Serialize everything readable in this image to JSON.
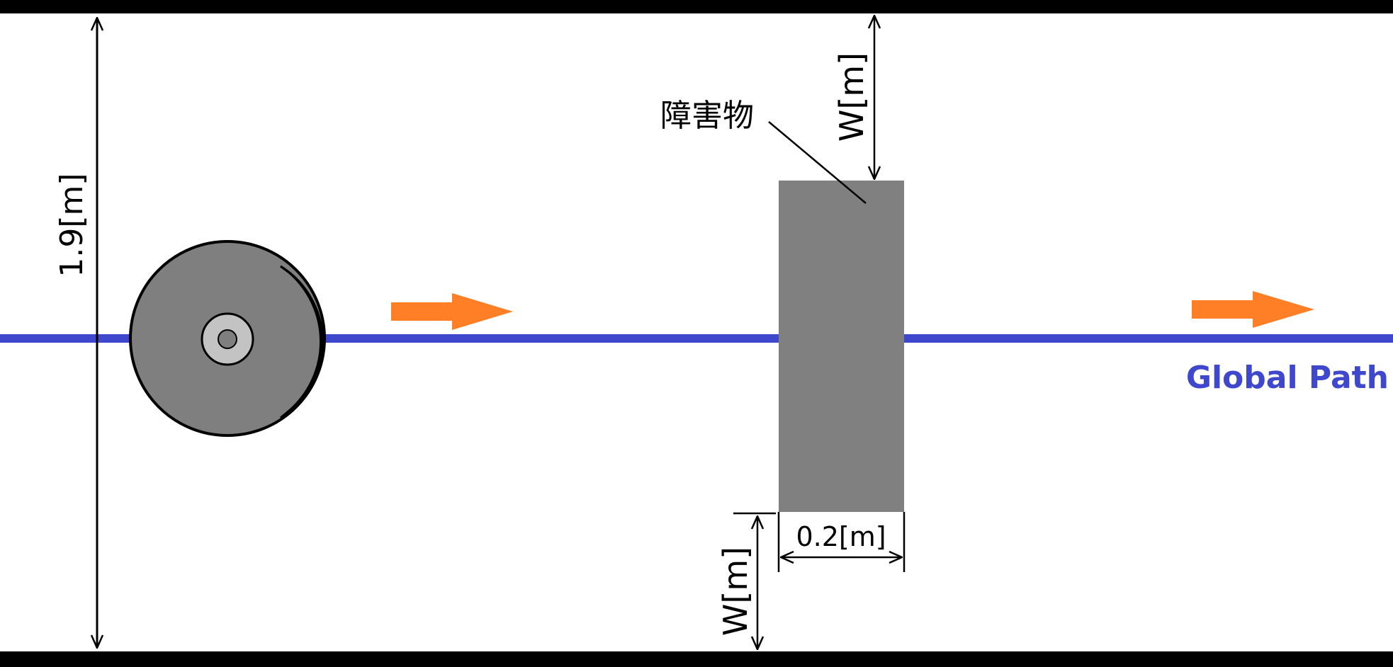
{
  "labels": {
    "corridor_width": "1.9[m]",
    "obstacle": "障害物",
    "gap_top": "W[m]",
    "gap_bottom": "W[m]",
    "obstacle_width": "0.2[m]",
    "global_path": "Global Path"
  },
  "colors": {
    "wall": "#000000",
    "path": "#3f48cc",
    "arrow": "#ff7f27",
    "obstacle": "#808080",
    "robot_body": "#7f7f7f",
    "robot_light": "#c3c3c3"
  },
  "icons": {
    "robot": "robot-topdown-icon",
    "direction": "right-arrow-icon"
  }
}
